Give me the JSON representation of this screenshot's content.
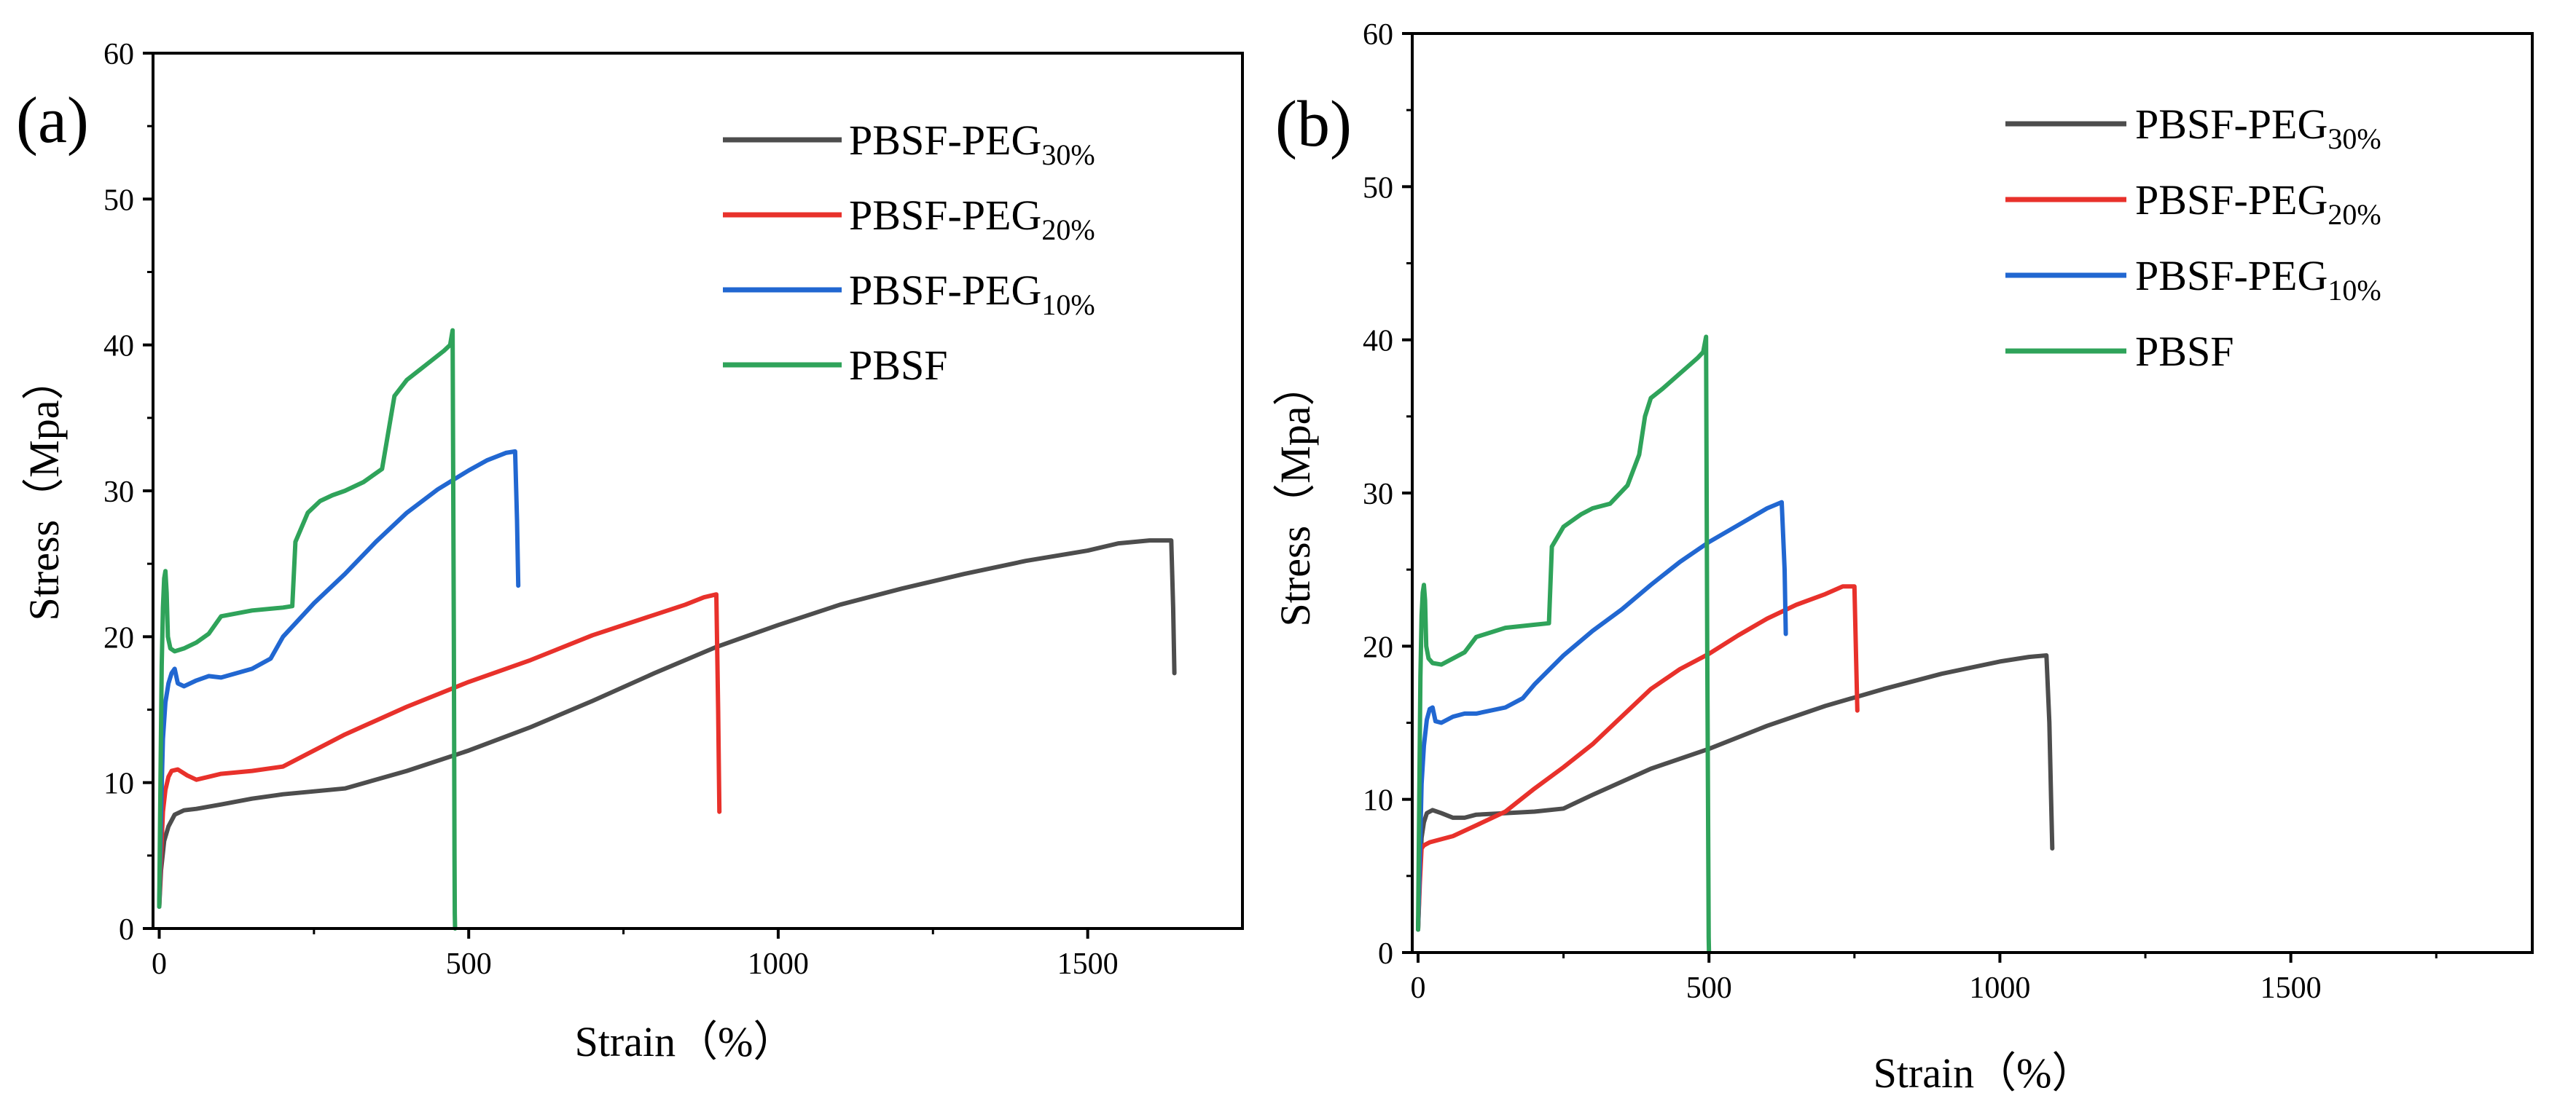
{
  "chart_data": [
    {
      "type": "line",
      "panel_label": "(a)",
      "xlabel": "Strain（%）",
      "ylabel": "Stress（Mpa）",
      "xlim": [
        -10,
        1750
      ],
      "ylim": [
        0,
        60
      ],
      "xticks": [
        0,
        500,
        1000,
        1500
      ],
      "yticks": [
        0,
        10,
        20,
        30,
        40,
        50,
        60
      ],
      "grid": false,
      "legend_position": "top-right",
      "series": [
        {
          "name": "PBSF-PEG",
          "subscript": "30%",
          "color": "#4d4d4d",
          "x": [
            0,
            3,
            8,
            15,
            25,
            40,
            60,
            100,
            150,
            200,
            250,
            300,
            400,
            500,
            600,
            700,
            800,
            900,
            1000,
            1100,
            1200,
            1300,
            1400,
            1500,
            1550,
            1600,
            1635,
            1638,
            1640
          ],
          "y": [
            1.5,
            4,
            6,
            7,
            7.8,
            8.1,
            8.2,
            8.5,
            8.9,
            9.2,
            9.4,
            9.6,
            10.8,
            12.2,
            13.8,
            15.6,
            17.5,
            19.3,
            20.8,
            22.2,
            23.3,
            24.3,
            25.2,
            25.9,
            26.4,
            26.6,
            26.6,
            22,
            17.5
          ]
        },
        {
          "name": "PBSF-PEG",
          "subscript": "20%",
          "color": "#e8312b",
          "x": [
            0,
            3,
            6,
            10,
            15,
            20,
            30,
            45,
            60,
            80,
            100,
            150,
            200,
            250,
            300,
            400,
            500,
            600,
            700,
            800,
            850,
            880,
            900,
            903,
            905
          ],
          "y": [
            1.5,
            5,
            8,
            9.5,
            10.4,
            10.8,
            10.9,
            10.5,
            10.2,
            10.4,
            10.6,
            10.8,
            11.1,
            12.2,
            13.3,
            15.2,
            16.9,
            18.4,
            20.1,
            21.5,
            22.2,
            22.7,
            22.9,
            15,
            8
          ]
        },
        {
          "name": "PBSF-PEG",
          "subscript": "10%",
          "color": "#2167d1",
          "x": [
            0,
            3,
            6,
            10,
            15,
            20,
            25,
            30,
            40,
            60,
            80,
            100,
            150,
            180,
            200,
            250,
            300,
            350,
            400,
            450,
            500,
            530,
            560,
            575,
            578,
            580
          ],
          "y": [
            1.5,
            8,
            13,
            15.5,
            16.8,
            17.5,
            17.8,
            16.8,
            16.6,
            17,
            17.3,
            17.2,
            17.8,
            18.5,
            20,
            22.3,
            24.3,
            26.5,
            28.5,
            30.1,
            31.4,
            32.1,
            32.6,
            32.7,
            28,
            23.5
          ]
        },
        {
          "name": "PBSF",
          "subscript": "",
          "color": "#2fa35a",
          "x": [
            0,
            2,
            4,
            6,
            8,
            10,
            12,
            14,
            18,
            25,
            40,
            60,
            80,
            100,
            150,
            200,
            215,
            220,
            240,
            260,
            280,
            300,
            330,
            360,
            370,
            380,
            400,
            430,
            460,
            470,
            474,
            476,
            477,
            477.5,
            478
          ],
          "y": [
            1.5,
            10,
            18,
            22,
            24,
            24.5,
            23,
            20,
            19.2,
            19,
            19.2,
            19.6,
            20.2,
            21.4,
            21.8,
            22,
            22.1,
            26.5,
            28.5,
            29.3,
            29.7,
            30,
            30.6,
            31.5,
            34,
            36.5,
            37.6,
            38.6,
            39.6,
            40,
            41,
            20,
            5,
            1,
            0
          ]
        }
      ]
    },
    {
      "type": "line",
      "panel_label": "(b)",
      "xlabel": "Strain（%）",
      "ylabel": "Stress（Mpa）",
      "xlim": [
        -10,
        1915
      ],
      "ylim": [
        0,
        60
      ],
      "xticks": [
        0,
        500,
        1000,
        1500
      ],
      "yticks": [
        0,
        10,
        20,
        30,
        40,
        50,
        60
      ],
      "grid": false,
      "legend_position": "top-right",
      "series": [
        {
          "name": "PBSF-PEG",
          "subscript": "30%",
          "color": "#4d4d4d",
          "x": [
            0,
            3,
            6,
            10,
            15,
            25,
            40,
            60,
            80,
            100,
            150,
            200,
            250,
            300,
            400,
            500,
            600,
            700,
            800,
            900,
            1000,
            1050,
            1080,
            1085,
            1088,
            1090
          ],
          "y": [
            1.5,
            5,
            7.5,
            8.5,
            9.1,
            9.3,
            9.1,
            8.8,
            8.8,
            9,
            9.1,
            9.2,
            9.4,
            10.3,
            12,
            13.3,
            14.8,
            16.1,
            17.2,
            18.2,
            19,
            19.3,
            19.4,
            15,
            10,
            6.8
          ]
        },
        {
          "name": "PBSF-PEG",
          "subscript": "20%",
          "color": "#e8312b",
          "x": [
            0,
            3,
            6,
            10,
            20,
            40,
            60,
            100,
            150,
            200,
            250,
            300,
            350,
            400,
            450,
            500,
            550,
            600,
            650,
            700,
            730,
            750,
            753,
            755
          ],
          "y": [
            1.5,
            4.5,
            6.8,
            7,
            7.2,
            7.4,
            7.6,
            8.3,
            9.2,
            10.7,
            12.1,
            13.6,
            15.4,
            17.2,
            18.5,
            19.5,
            20.7,
            21.8,
            22.7,
            23.4,
            23.9,
            23.9,
            19,
            15.8
          ]
        },
        {
          "name": "PBSF-PEG",
          "subscript": "10%",
          "color": "#2167d1",
          "x": [
            0,
            3,
            6,
            10,
            15,
            20,
            25,
            30,
            40,
            60,
            80,
            100,
            150,
            180,
            200,
            250,
            300,
            350,
            400,
            450,
            500,
            550,
            600,
            625,
            630,
            632
          ],
          "y": [
            1.5,
            6,
            11,
            13.5,
            15.2,
            15.9,
            16,
            15.1,
            15,
            15.4,
            15.6,
            15.6,
            16,
            16.6,
            17.5,
            19.4,
            21,
            22.4,
            24,
            25.5,
            26.8,
            27.9,
            29,
            29.4,
            25,
            20.8
          ]
        },
        {
          "name": "PBSF",
          "subscript": "",
          "color": "#2fa35a",
          "x": [
            0,
            2,
            4,
            6,
            8,
            10,
            12,
            14,
            18,
            25,
            40,
            60,
            80,
            100,
            150,
            200,
            225,
            230,
            250,
            280,
            300,
            330,
            360,
            380,
            390,
            400,
            420,
            450,
            480,
            490,
            495,
            497,
            499,
            499.5,
            500
          ],
          "y": [
            1.5,
            10,
            18,
            22,
            23.5,
            24,
            23,
            20,
            19.2,
            18.9,
            18.8,
            19.2,
            19.6,
            20.6,
            21.2,
            21.4,
            21.5,
            26.5,
            27.8,
            28.6,
            29,
            29.3,
            30.5,
            32.5,
            35,
            36.2,
            36.8,
            37.8,
            38.8,
            39.2,
            40.2,
            20,
            5,
            1,
            0
          ]
        }
      ]
    }
  ]
}
